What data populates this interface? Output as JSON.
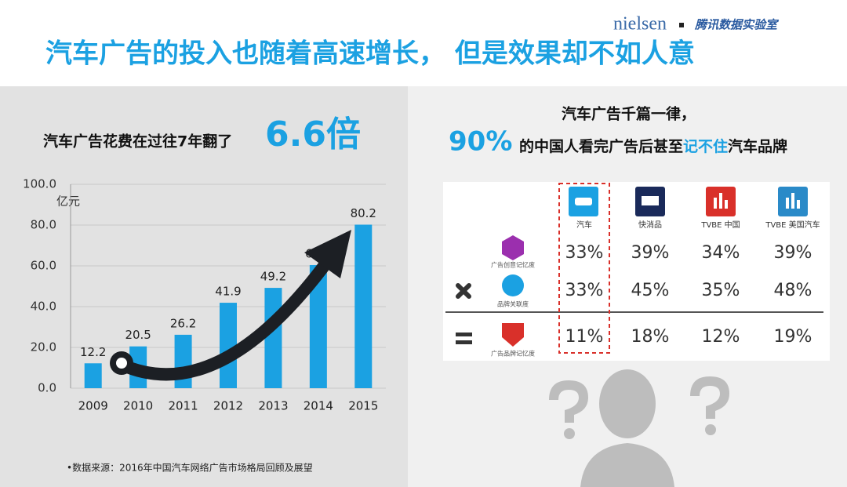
{
  "header": {
    "title": "汽车广告的投入也随着高速增长， 但是效果却不如人意",
    "brand": "nielsen",
    "lab": "腾讯数据实验室"
  },
  "chart_data": {
    "type": "bar",
    "title": "汽车广告花费在过往7年翻了",
    "highlight": "6.6倍",
    "y_unit": "亿元",
    "categories": [
      "2009",
      "2010",
      "2011",
      "2012",
      "2013",
      "2014",
      "2015"
    ],
    "values": [
      12.2,
      20.5,
      26.2,
      41.9,
      49.2,
      60.4,
      80.2
    ],
    "color": "#1ba1e2",
    "ylim": [
      0,
      100
    ],
    "yticks": [
      {
        "value": 0,
        "label": "0.0"
      },
      {
        "value": 20,
        "label": "20.0"
      },
      {
        "value": 40,
        "label": "40.0"
      },
      {
        "value": 60,
        "label": "60.0"
      },
      {
        "value": 80,
        "label": "80.0"
      },
      {
        "value": 100,
        "label": "100.0"
      }
    ],
    "source": "•数据来源：2016年中国汽车网络广告市场格局回顾及展望"
  },
  "right": {
    "line1": "汽车广告千篇一律，",
    "stat": "90%",
    "line2a": "的中国人看完广告后甚至",
    "line2b": "记不住",
    "line2c": "汽车品牌",
    "table": {
      "columns": [
        "汽车",
        "快消品",
        "TVBE 中国",
        "TVBE 美国汽车"
      ],
      "rows": [
        {
          "label": "广告创意记忆度",
          "values": [
            "33%",
            "39%",
            "34%",
            "39%"
          ]
        },
        {
          "label": "品牌关联度",
          "values": [
            "33%",
            "45%",
            "35%",
            "48%"
          ]
        },
        {
          "label": "广告品牌记忆度",
          "values": [
            "11%",
            "18%",
            "12%",
            "19%"
          ]
        }
      ]
    }
  }
}
